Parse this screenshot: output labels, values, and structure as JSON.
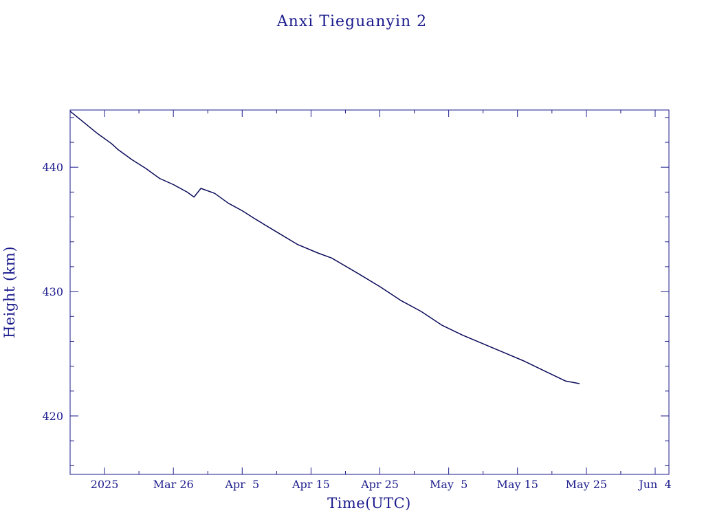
{
  "colors": {
    "background": "#ffffff",
    "ink": "#1a1a8c",
    "series": "#0a0a5a"
  },
  "chart_data": {
    "type": "line",
    "title": "Anxi Tieguanyin 2",
    "xlabel": "Time(UTC)",
    "ylabel": "Height (km)",
    "grid": false,
    "xlim": [
      "2025-03-11",
      "2025-06-06"
    ],
    "ylim": [
      415.3,
      444.6
    ],
    "x_ticks": [
      {
        "date": "2025-03-16",
        "label": "2025"
      },
      {
        "date": "2025-03-26",
        "label": "Mar 26"
      },
      {
        "date": "2025-04-05",
        "label": "Apr  5"
      },
      {
        "date": "2025-04-15",
        "label": "Apr 15"
      },
      {
        "date": "2025-04-25",
        "label": "Apr 25"
      },
      {
        "date": "2025-05-05",
        "label": "May  5"
      },
      {
        "date": "2025-05-15",
        "label": "May 15"
      },
      {
        "date": "2025-05-25",
        "label": "May 25"
      },
      {
        "date": "2025-06-04",
        "label": "Jun  4"
      }
    ],
    "y_ticks": [
      {
        "value": 420,
        "label": "420"
      },
      {
        "value": 430,
        "label": "430"
      },
      {
        "value": 440,
        "label": "440"
      }
    ],
    "series": [
      {
        "points": [
          [
            "2025-03-11",
            444.5
          ],
          [
            "2025-03-13",
            443.6
          ],
          [
            "2025-03-15",
            442.7
          ],
          [
            "2025-03-17",
            441.9
          ],
          [
            "2025-03-18",
            441.4
          ],
          [
            "2025-03-20",
            440.6
          ],
          [
            "2025-03-22",
            439.9
          ],
          [
            "2025-03-24",
            439.1
          ],
          [
            "2025-03-26",
            438.6
          ],
          [
            "2025-03-28",
            438.0
          ],
          [
            "2025-03-29",
            437.6
          ],
          [
            "2025-03-30",
            438.3
          ],
          [
            "2025-04-01",
            437.9
          ],
          [
            "2025-04-03",
            437.1
          ],
          [
            "2025-04-05",
            436.5
          ],
          [
            "2025-04-07",
            435.8
          ],
          [
            "2025-04-10",
            434.8
          ],
          [
            "2025-04-13",
            433.8
          ],
          [
            "2025-04-16",
            433.1
          ],
          [
            "2025-04-18",
            432.7
          ],
          [
            "2025-04-22",
            431.4
          ],
          [
            "2025-04-25",
            430.4
          ],
          [
            "2025-04-28",
            429.3
          ],
          [
            "2025-05-01",
            428.4
          ],
          [
            "2025-05-04",
            427.3
          ],
          [
            "2025-05-07",
            426.5
          ],
          [
            "2025-05-10",
            425.8
          ],
          [
            "2025-05-13",
            425.1
          ],
          [
            "2025-05-16",
            424.4
          ],
          [
            "2025-05-19",
            423.6
          ],
          [
            "2025-05-22",
            422.8
          ],
          [
            "2025-05-24",
            422.6
          ]
        ]
      }
    ]
  }
}
